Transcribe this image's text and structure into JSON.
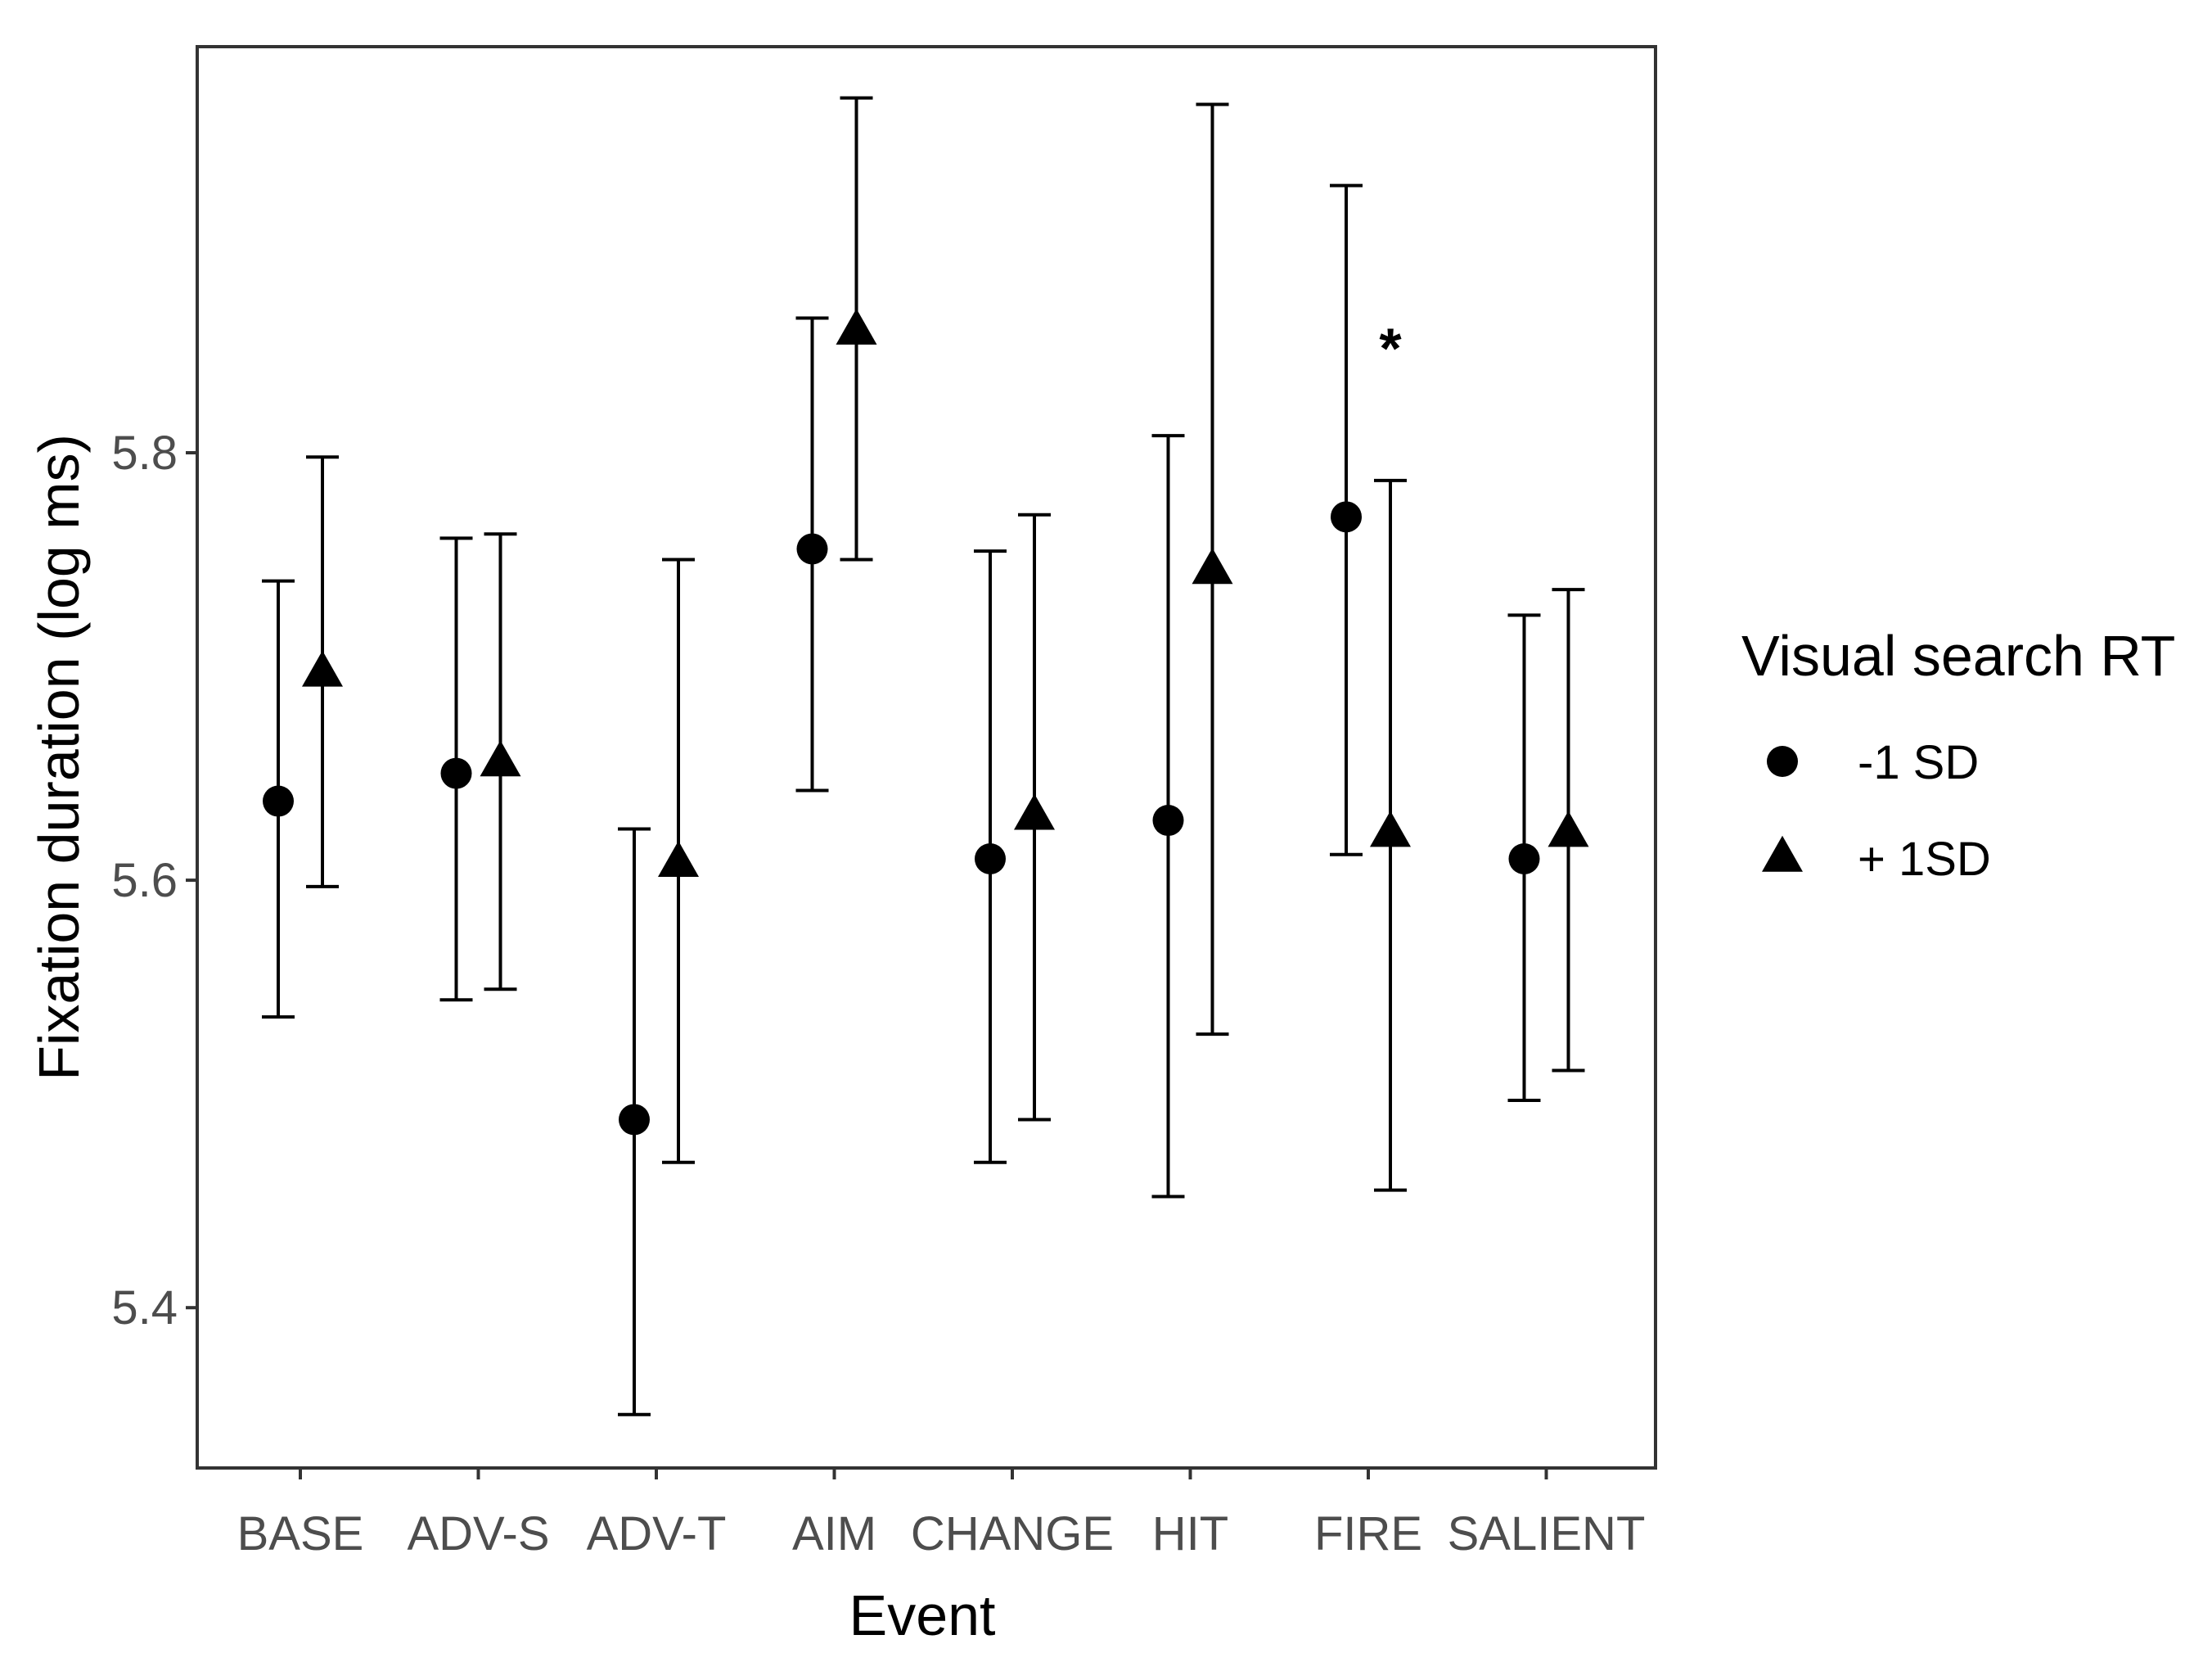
{
  "chart_data": {
    "type": "scatter",
    "xlabel": "Event",
    "ylabel": "Fixation duration (log ms)",
    "categories": [
      "BASE",
      "ADV-S",
      "ADV-T",
      "AIM",
      "CHANGE",
      "HIT",
      "FIRE",
      "SALIENT"
    ],
    "yticks": [
      5.4,
      5.6,
      5.8
    ],
    "ylim": [
      5.325,
      5.99
    ],
    "grid": false,
    "legend": {
      "title": "Visual search RT",
      "placement": "right"
    },
    "series": [
      {
        "name": "-1 SD",
        "marker": "circle",
        "values": [
          5.637,
          5.65,
          5.488,
          5.755,
          5.61,
          5.628,
          5.77,
          5.61
        ],
        "lower": [
          5.536,
          5.544,
          5.35,
          5.642,
          5.468,
          5.452,
          5.612,
          5.497
        ],
        "upper": [
          5.74,
          5.76,
          5.624,
          5.863,
          5.754,
          5.808,
          5.925,
          5.724
        ]
      },
      {
        "name": "+ 1SD",
        "marker": "triangle",
        "values": [
          5.697,
          5.655,
          5.608,
          5.857,
          5.63,
          5.745,
          5.622,
          5.622
        ],
        "lower": [
          5.597,
          5.549,
          5.468,
          5.75,
          5.488,
          5.528,
          5.455,
          5.511
        ],
        "upper": [
          5.798,
          5.762,
          5.75,
          5.966,
          5.771,
          5.963,
          5.787,
          5.736
        ]
      }
    ],
    "annotations": [
      {
        "text": "*",
        "category": "FIRE",
        "series": "+ 1SD",
        "y": 5.855
      }
    ]
  }
}
